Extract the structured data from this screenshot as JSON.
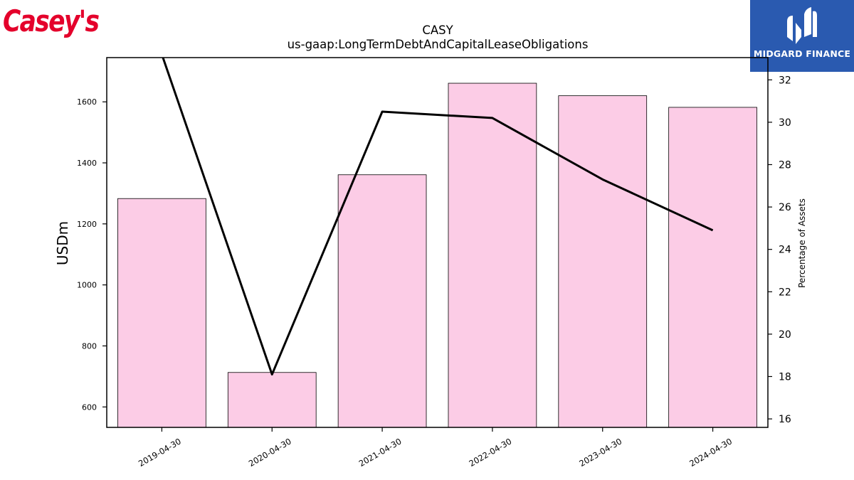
{
  "branding": {
    "left_logo_text": "Casey's",
    "right_logo_text": "MIDGARD FINANCE",
    "left_logo_color": "#e4002b",
    "right_logo_bg": "#2a5ab0"
  },
  "chart_data": {
    "type": "bar",
    "title": "CASY",
    "subtitle": "us-gaap:LongTermDebtAndCapitalLeaseObligations",
    "ylabel": "USDm",
    "y2label": "Percentage of Assets",
    "categories": [
      "2019-04-30",
      "2020-04-30",
      "2021-04-30",
      "2022-04-30",
      "2023-04-30",
      "2024-04-30"
    ],
    "ylim": [
      533,
      1745
    ],
    "y2lim": [
      15.6,
      33.05
    ],
    "yticks": [
      "600",
      "800",
      "1000",
      "1200",
      "1400",
      "1600"
    ],
    "y2ticks": [
      "16",
      "18",
      "20",
      "22",
      "24",
      "26",
      "28",
      "30",
      "32"
    ],
    "bar_color": "#fccce6",
    "line_color": "#000000",
    "series": [
      {
        "type": "bar",
        "axis": "left",
        "values": [
          1283,
          713,
          1361,
          1661,
          1620,
          1582
        ]
      },
      {
        "type": "line",
        "axis": "right",
        "values": [
          33.2,
          18.1,
          30.5,
          30.2,
          27.3,
          24.9
        ]
      }
    ]
  }
}
